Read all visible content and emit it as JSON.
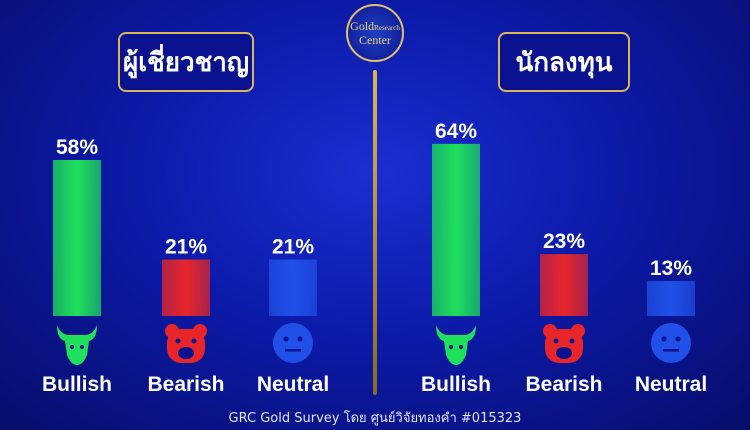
{
  "logo_text": "Gold Research Center",
  "footer": "GRC Gold Survey โดย ศูนย์วิจัยทองคำ #015323",
  "colors": {
    "Bullish": "#1ee05a",
    "Bearish": "#e8262a",
    "Neutral": "#2050e8",
    "gold": "#d9b45a"
  },
  "chart_data": [
    {
      "type": "bar",
      "title": "ผู้เชี่ยวชาญ",
      "categories": [
        "Bullish",
        "Bearish",
        "Neutral"
      ],
      "values": [
        58,
        21,
        21
      ],
      "data_labels": [
        "58%",
        "21%",
        "21%"
      ],
      "icons": [
        "bull-icon",
        "bear-icon",
        "neutral-face-icon"
      ]
    },
    {
      "type": "bar",
      "title": "นักลงทุน",
      "categories": [
        "Bullish",
        "Bearish",
        "Neutral"
      ],
      "values": [
        64,
        23,
        13
      ],
      "data_labels": [
        "64%",
        "23%",
        "13%"
      ],
      "icons": [
        "bull-icon",
        "bear-icon",
        "neutral-face-icon"
      ]
    }
  ]
}
